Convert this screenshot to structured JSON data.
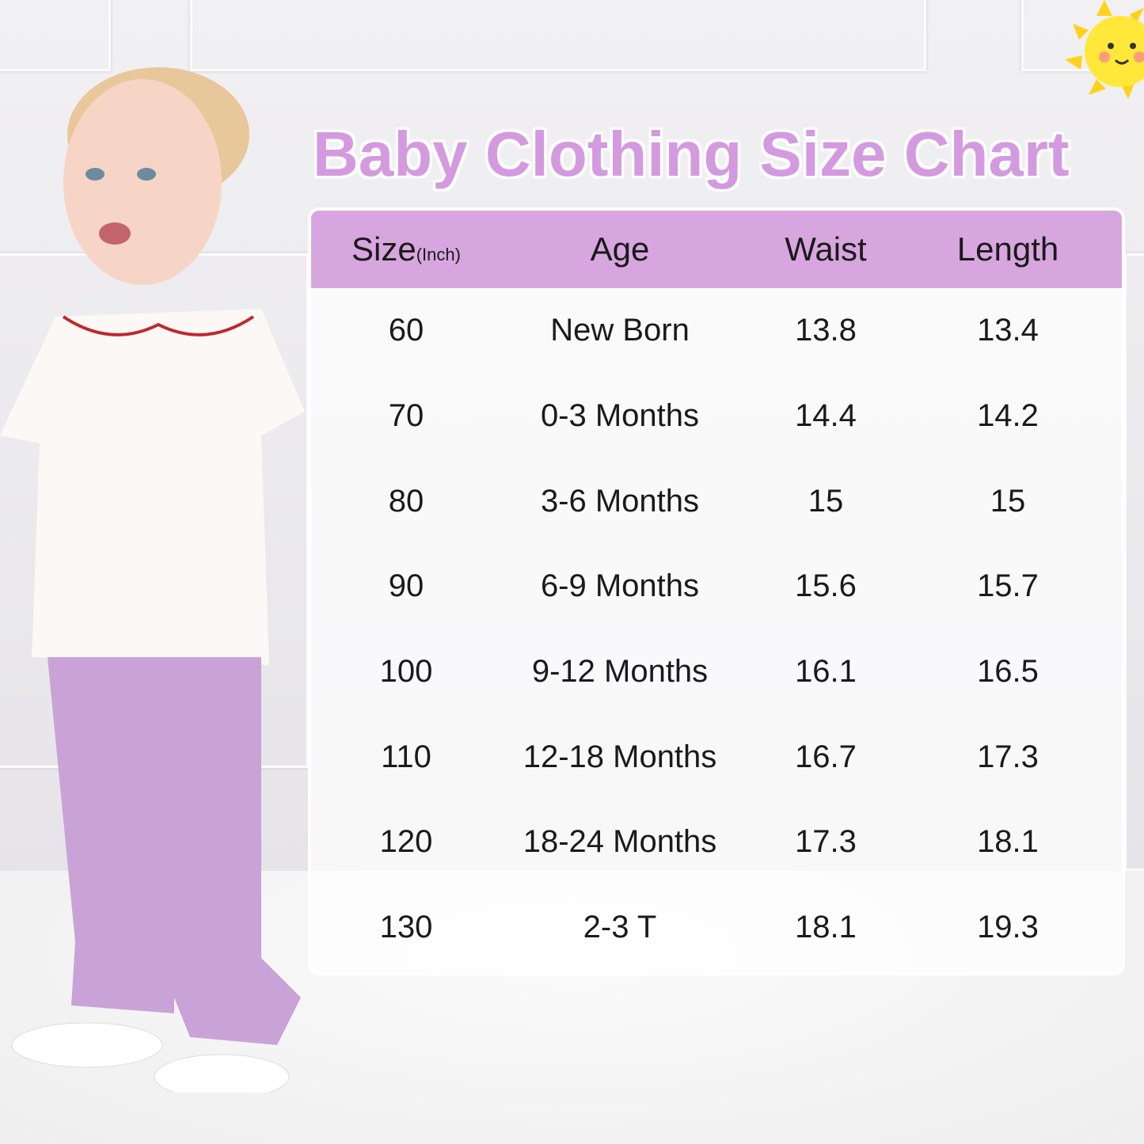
{
  "title": "Baby Clothing Size Chart",
  "colors": {
    "title": "#d49ae0",
    "header_bg": "#d8a6df",
    "pants": "#c9a3d8"
  },
  "table": {
    "headers": {
      "size": "Size",
      "size_unit": "(Inch)",
      "age": "Age",
      "waist": "Waist",
      "length": "Length"
    },
    "rows": [
      {
        "size": "60",
        "age": "New Born",
        "waist": "13.8",
        "length": "13.4"
      },
      {
        "size": "70",
        "age": "0-3 Months",
        "waist": "14.4",
        "length": "14.2"
      },
      {
        "size": "80",
        "age": "3-6 Months",
        "waist": "15",
        "length": "15"
      },
      {
        "size": "90",
        "age": "6-9 Months",
        "waist": "15.6",
        "length": "15.7"
      },
      {
        "size": "100",
        "age": "9-12 Months",
        "waist": "16.1",
        "length": "16.5"
      },
      {
        "size": "110",
        "age": "12-18 Months",
        "waist": "16.7",
        "length": "17.3"
      },
      {
        "size": "120",
        "age": "18-24 Months",
        "waist": "17.3",
        "length": "18.1"
      },
      {
        "size": "130",
        "age": "2-3 T",
        "waist": "18.1",
        "length": "19.3"
      }
    ]
  }
}
